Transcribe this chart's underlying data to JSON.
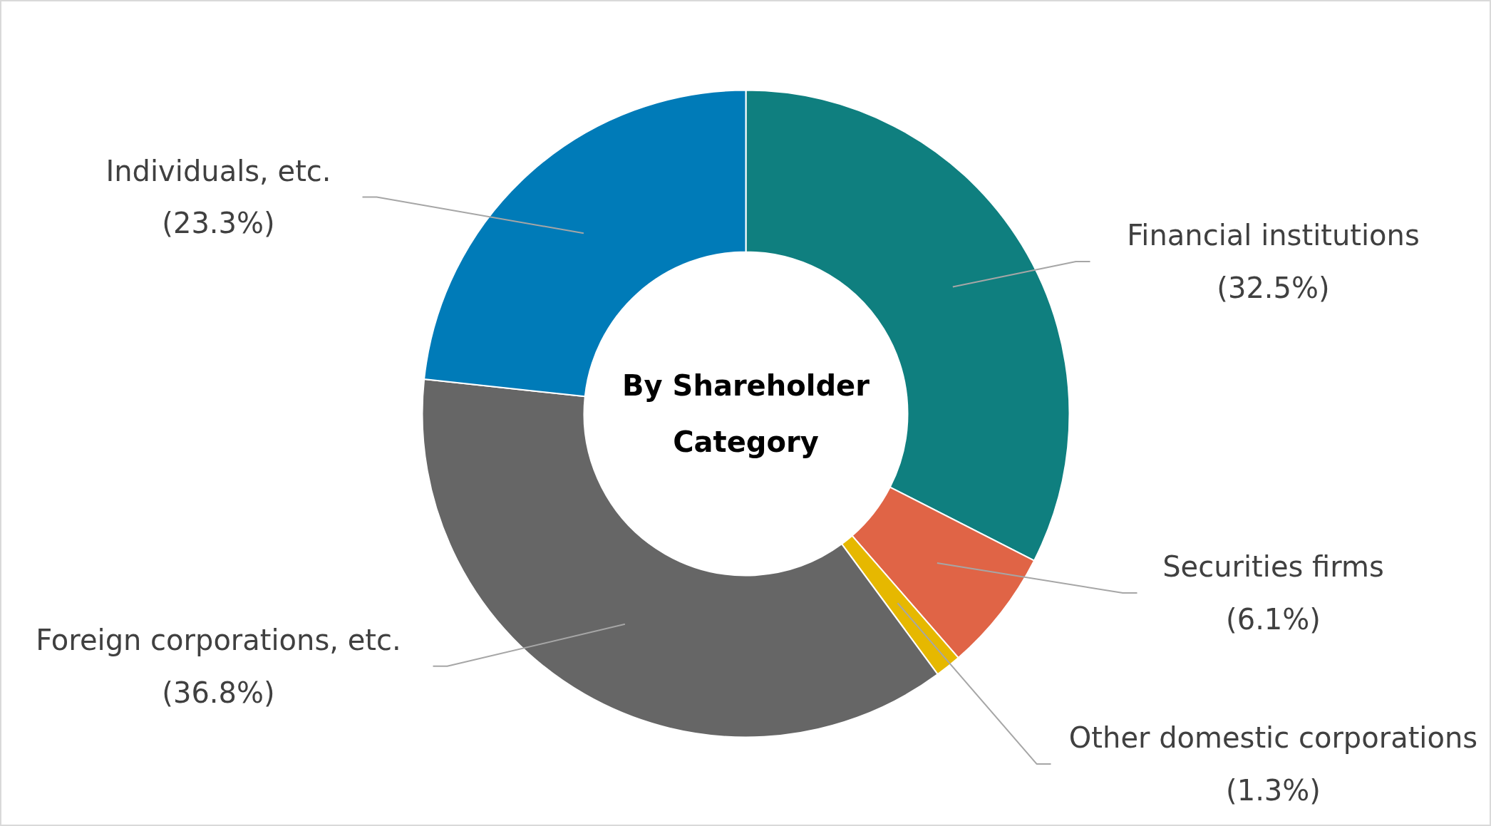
{
  "chart_data": {
    "type": "donut",
    "title": "By Shareholder Category",
    "categories": [
      "Financial institutions",
      "Securities firms",
      "Other domestic corporations",
      "Foreign corporations, etc.",
      "Individuals, etc."
    ],
    "values": [
      32.5,
      6.1,
      1.3,
      36.8,
      23.3
    ],
    "colors": [
      "#0f7f7f",
      "#e06446",
      "#e6b800",
      "#666666",
      "#007bb8"
    ],
    "value_labels": [
      "(32.5%)",
      "(6.1%)",
      "(1.3%)",
      "(36.8%)",
      "(23.3%)"
    ]
  }
}
